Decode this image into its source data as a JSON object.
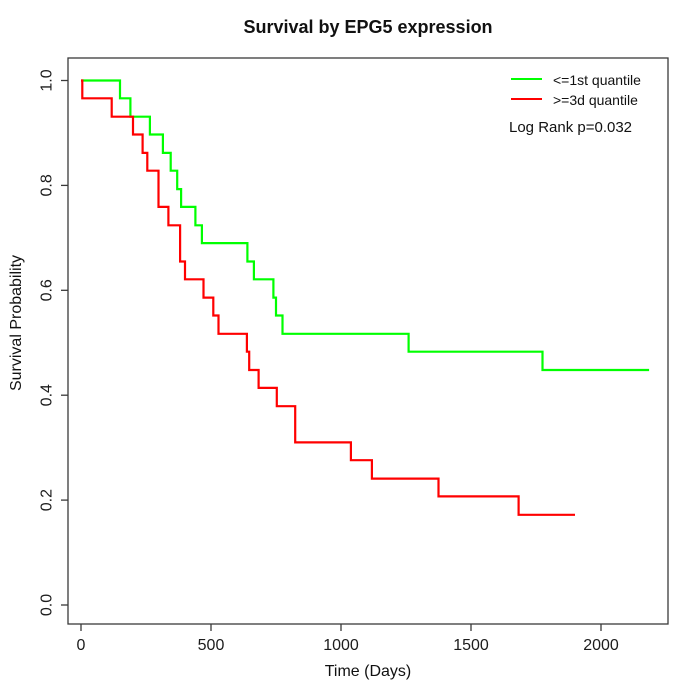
{
  "chart_data": {
    "type": "line",
    "subtype": "kaplan-meier-step",
    "title": "Survival by EPG5 expression",
    "xlabel": "Time (Days)",
    "ylabel": "Survival Probability",
    "xlim": [
      0,
      2260
    ],
    "ylim": [
      0.0,
      1.0
    ],
    "x_ticks": [
      0,
      500,
      1000,
      1500,
      2000
    ],
    "y_ticks": [
      0.0,
      0.2,
      0.4,
      0.6,
      0.8,
      1.0
    ],
    "grid": false,
    "legend_position": "top-right",
    "annotation": "Log Rank p=0.032",
    "axis_color": "#3a3a3a",
    "series": [
      {
        "name": "<=1st quantile",
        "color": "#00ff00",
        "end_time": 2185,
        "steps": [
          [
            0,
            1.0
          ],
          [
            150,
            0.966
          ],
          [
            190,
            0.931
          ],
          [
            265,
            0.897
          ],
          [
            315,
            0.862
          ],
          [
            345,
            0.828
          ],
          [
            370,
            0.793
          ],
          [
            385,
            0.759
          ],
          [
            440,
            0.724
          ],
          [
            465,
            0.69
          ],
          [
            640,
            0.655
          ],
          [
            665,
            0.621
          ],
          [
            740,
            0.586
          ],
          [
            750,
            0.552
          ],
          [
            775,
            0.517
          ],
          [
            1260,
            0.483
          ],
          [
            1775,
            0.448
          ]
        ]
      },
      {
        "name": ">=3d quantile",
        "color": "#ff0000",
        "end_time": 1900,
        "steps": [
          [
            0,
            1.0
          ],
          [
            5,
            0.966
          ],
          [
            118,
            0.931
          ],
          [
            200,
            0.897
          ],
          [
            237,
            0.862
          ],
          [
            255,
            0.828
          ],
          [
            298,
            0.759
          ],
          [
            336,
            0.724
          ],
          [
            381,
            0.655
          ],
          [
            400,
            0.621
          ],
          [
            471,
            0.586
          ],
          [
            509,
            0.552
          ],
          [
            529,
            0.517
          ],
          [
            638,
            0.483
          ],
          [
            647,
            0.448
          ],
          [
            683,
            0.414
          ],
          [
            753,
            0.379
          ],
          [
            824,
            0.31
          ],
          [
            1038,
            0.276
          ],
          [
            1119,
            0.241
          ],
          [
            1375,
            0.207
          ],
          [
            1683,
            0.172
          ]
        ]
      }
    ]
  }
}
